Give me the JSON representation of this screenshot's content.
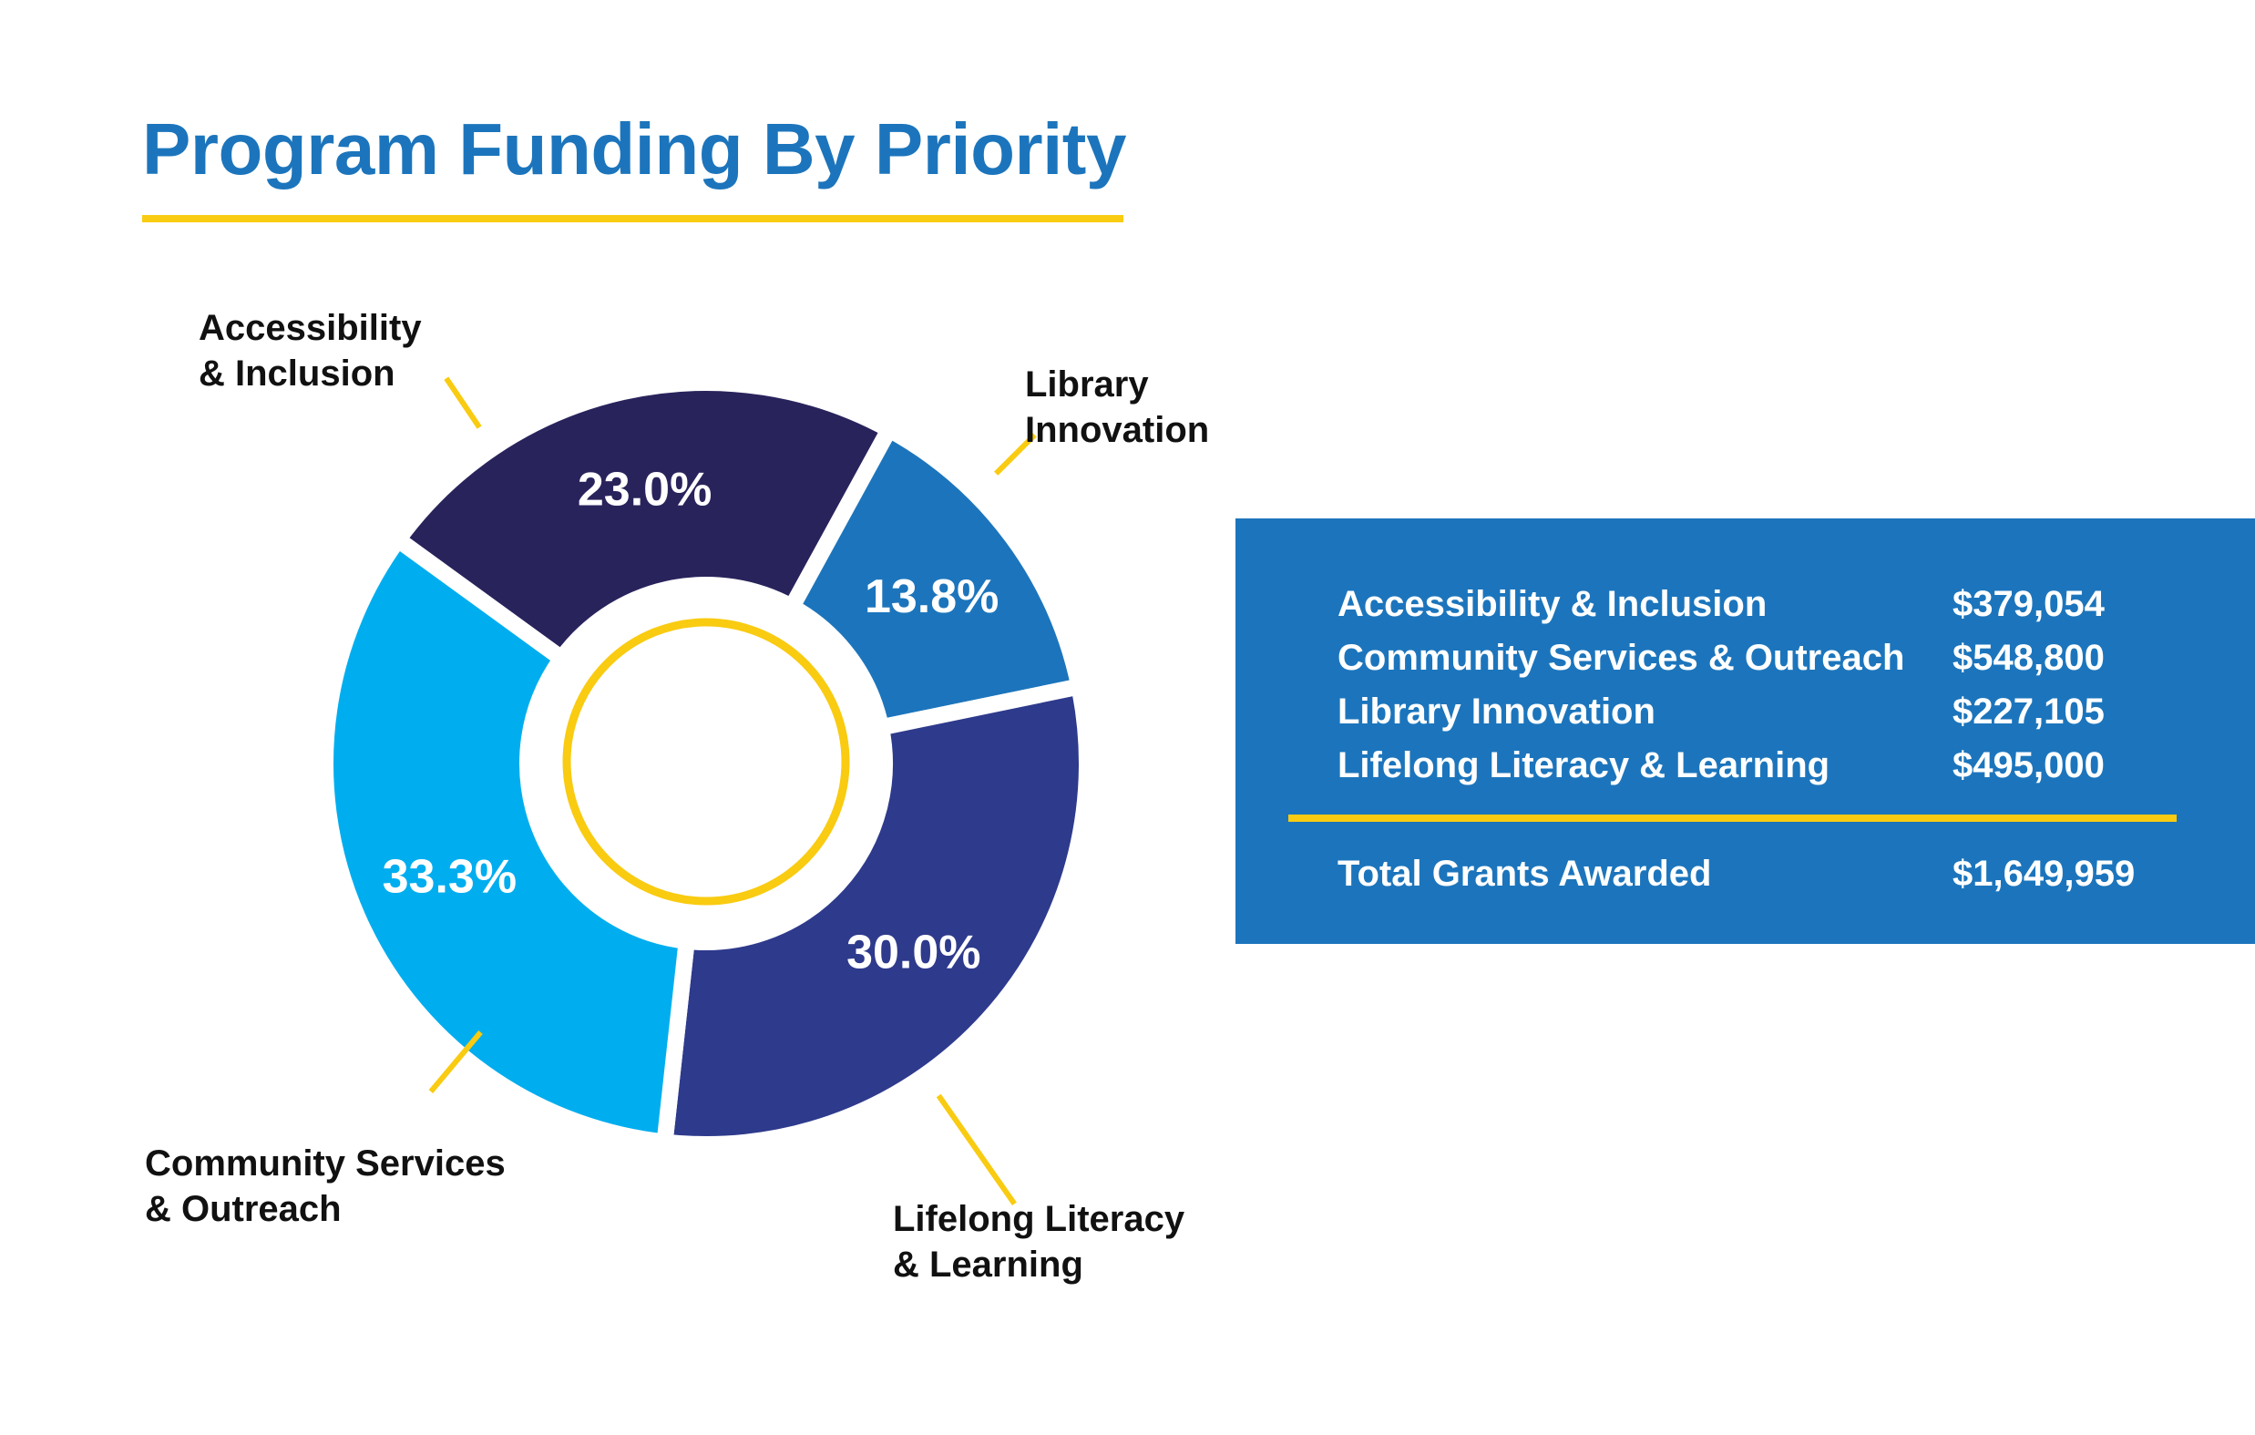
{
  "colors": {
    "title": "#1c75bc",
    "accent_yellow": "#f9cb11",
    "panel_bg": "#1c75bc",
    "label_text": "#111111",
    "value_text": "#ffffff"
  },
  "title": "Program Funding By Priority",
  "chart_data": {
    "type": "pie",
    "style": "donut",
    "slices": [
      {
        "label_lines": [
          "Accessibility",
          "& Inclusion"
        ],
        "value": 23.0,
        "value_label": "23.0%",
        "color": "#29235c"
      },
      {
        "label_lines": [
          "Library",
          "Innovation"
        ],
        "value": 13.8,
        "value_label": "13.8%",
        "color": "#1c75bc"
      },
      {
        "label_lines": [
          "Lifelong Literacy",
          "& Learning"
        ],
        "value": 30.0,
        "value_label": "30.0%",
        "color": "#2e3a8c"
      },
      {
        "label_lines": [
          "Community Services",
          "& Outreach"
        ],
        "value": 33.3,
        "value_label": "33.3%",
        "color": "#00aeef"
      }
    ]
  },
  "summary": {
    "rows": [
      {
        "name": "Accessibility & Inclusion",
        "amount": "$379,054"
      },
      {
        "name": "Community Services & Outreach",
        "amount": "$548,800"
      },
      {
        "name": "Library Innovation",
        "amount": "$227,105"
      },
      {
        "name": "Lifelong Literacy & Learning",
        "amount": "$495,000"
      }
    ],
    "total": {
      "name": "Total Grants Awarded",
      "amount": "$1,649,959"
    }
  }
}
